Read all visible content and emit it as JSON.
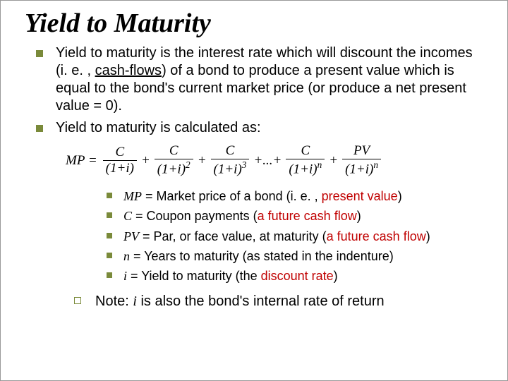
{
  "title": "Yield to Maturity",
  "bullets": [
    {
      "pre": "Yield to maturity is the interest rate which will discount the incomes (i. e. , ",
      "ul": "cash-flows",
      "post": ") of a bond to produce a present value which is equal to the bond's current market price (or produce a net present value = 0)."
    },
    {
      "full": "Yield to maturity is calculated as:"
    }
  ],
  "formula": {
    "lhs": "MP",
    "num_c": "C",
    "num_pv": "PV",
    "den_base": "(1+i)",
    "exp2": "2",
    "exp3": "3",
    "expn": "n",
    "dots": "+...+"
  },
  "defs": [
    {
      "sym": "MP",
      "pre": " = Market price of a bond (i. e. , ",
      "hl": "present value",
      "post": ")"
    },
    {
      "sym": "C",
      "pre": " = Coupon payments (",
      "hl": "a future cash flow",
      "post": ")"
    },
    {
      "sym": "PV",
      "pre": " = Par, or face value, at maturity (",
      "hl": "a future cash flow",
      "post": ")"
    },
    {
      "sym": "n",
      "pre": " = Years to maturity (as stated in the indenture)",
      "hl": "",
      "post": ""
    },
    {
      "sym": "i",
      "pre": " = Yield to maturity (the ",
      "hl": "discount rate",
      "post": ")"
    }
  ],
  "note": {
    "pre": "Note: ",
    "sym": "i",
    "post": " is also the bond's internal rate of return"
  },
  "colors": {
    "bullet_marker": "#7a8a3a",
    "highlight": "#c00000",
    "text": "#000000",
    "background": "#ffffff"
  }
}
